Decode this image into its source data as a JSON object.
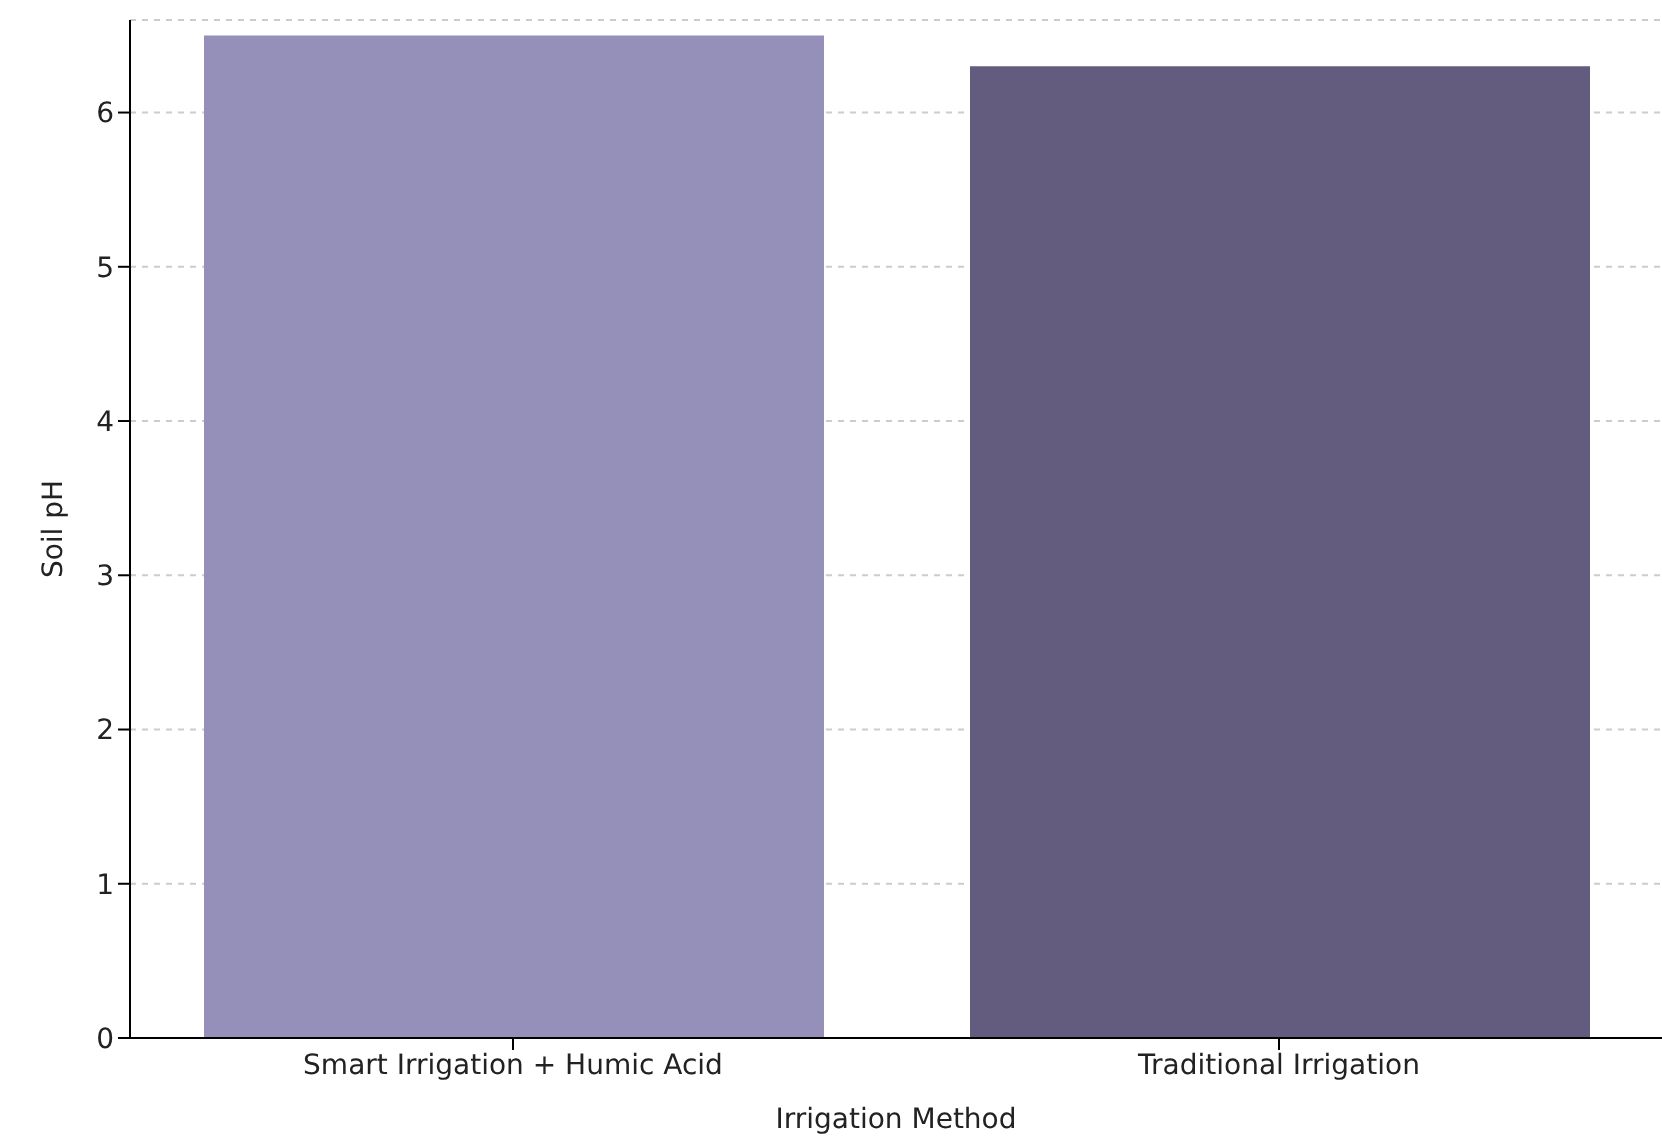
{
  "chart_data": {
    "type": "bar",
    "xlabel": "Irrigation Method",
    "ylabel": "Soil pH",
    "categories": [
      "Smart Irrigation + Humic Acid",
      "Traditional Irrigation"
    ],
    "values": [
      6.5,
      6.3
    ],
    "colors": [
      "#9590b9",
      "#635c7e"
    ],
    "ylim": [
      0,
      6.6
    ],
    "yticks": [
      0,
      1,
      2,
      3,
      4,
      5,
      6
    ],
    "grid": "y"
  }
}
